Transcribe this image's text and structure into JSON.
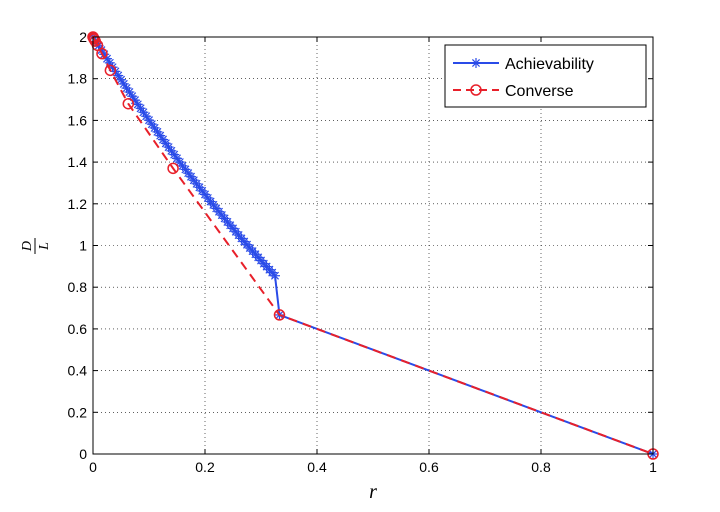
{
  "chart_data": {
    "type": "line",
    "xlabel": "r",
    "ylabel": {
      "numerator": "D",
      "denominator": "L"
    },
    "xlim": [
      0,
      1
    ],
    "ylim": [
      0,
      2
    ],
    "xticks": [
      "0",
      "0.2",
      "0.4",
      "0.6",
      "0.8",
      "1"
    ],
    "yticks": [
      "0",
      "0.2",
      "0.4",
      "0.6",
      "0.8",
      "1",
      "1.2",
      "1.4",
      "1.6",
      "1.8",
      "2"
    ],
    "grid": true,
    "legend_position": "top-right",
    "series": [
      {
        "name": "Achievability",
        "color": "#2a4be8",
        "line_style": "solid",
        "marker": "asterisk",
        "x": [
          0,
          0.005,
          0.01,
          0.015,
          0.02,
          0.025,
          0.03,
          0.035,
          0.04,
          0.045,
          0.05,
          0.055,
          0.06,
          0.065,
          0.07,
          0.075,
          0.08,
          0.085,
          0.09,
          0.095,
          0.1,
          0.105,
          0.11,
          0.115,
          0.12,
          0.125,
          0.13,
          0.135,
          0.14,
          0.145,
          0.15,
          0.155,
          0.16,
          0.165,
          0.17,
          0.175,
          0.18,
          0.185,
          0.19,
          0.195,
          0.2,
          0.205,
          0.21,
          0.215,
          0.22,
          0.225,
          0.23,
          0.235,
          0.24,
          0.245,
          0.25,
          0.255,
          0.26,
          0.265,
          0.27,
          0.275,
          0.28,
          0.285,
          0.29,
          0.295,
          0.3,
          0.305,
          0.31,
          0.315,
          0.32,
          0.325,
          0.333,
          1
        ],
        "y": [
          2.0,
          1.979,
          1.958,
          1.937,
          1.917,
          1.896,
          1.876,
          1.855,
          1.835,
          1.815,
          1.795,
          1.775,
          1.755,
          1.736,
          1.716,
          1.697,
          1.677,
          1.658,
          1.639,
          1.62,
          1.601,
          1.582,
          1.564,
          1.545,
          1.527,
          1.508,
          1.49,
          1.472,
          1.454,
          1.436,
          1.418,
          1.4,
          1.382,
          1.365,
          1.347,
          1.33,
          1.313,
          1.296,
          1.279,
          1.262,
          1.245,
          1.228,
          1.211,
          1.195,
          1.178,
          1.162,
          1.146,
          1.13,
          1.113,
          1.097,
          1.082,
          1.066,
          1.05,
          1.034,
          1.019,
          1.004,
          0.988,
          0.973,
          0.958,
          0.943,
          0.928,
          0.913,
          0.899,
          0.884,
          0.87,
          0.855,
          0.667,
          0
        ]
      },
      {
        "name": "Converse",
        "color": "#e8202a",
        "line_style": "dashed",
        "marker": "circle",
        "x": [
          0,
          0.001,
          0.002,
          0.004,
          0.008,
          0.016,
          0.031,
          0.063,
          0.143,
          0.333,
          1
        ],
        "y": [
          2.0,
          1.995,
          1.99,
          1.98,
          1.96,
          1.92,
          1.84,
          1.68,
          1.37,
          0.667,
          0
        ]
      }
    ]
  }
}
